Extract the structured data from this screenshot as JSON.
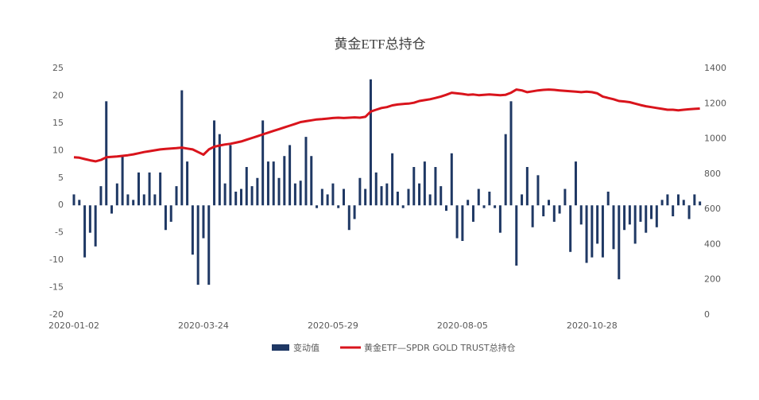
{
  "chart_data": {
    "type": "bar",
    "title": "黄金ETF总持仓",
    "categories": [
      "2020-01-02",
      null,
      null,
      null,
      null,
      null,
      null,
      null,
      null,
      null,
      null,
      null,
      null,
      null,
      null,
      null,
      null,
      null,
      null,
      null,
      null,
      null,
      null,
      null,
      "2020-03-24",
      null,
      null,
      null,
      null,
      null,
      null,
      null,
      null,
      null,
      null,
      null,
      null,
      null,
      null,
      null,
      null,
      null,
      null,
      null,
      null,
      null,
      null,
      null,
      "2020-05-29",
      null,
      null,
      null,
      null,
      null,
      null,
      null,
      null,
      null,
      null,
      null,
      null,
      null,
      null,
      null,
      null,
      null,
      null,
      null,
      null,
      null,
      null,
      null,
      "2020-08-05",
      null,
      null,
      null,
      null,
      null,
      null,
      null,
      null,
      null,
      null,
      null,
      null,
      null,
      null,
      null,
      null,
      null,
      null,
      null,
      null,
      null,
      null,
      null,
      "2020-10-28",
      null,
      null,
      null,
      null,
      null,
      null,
      null,
      null,
      null,
      null,
      null,
      null,
      null,
      null,
      null,
      null,
      null,
      null,
      null,
      null
    ],
    "series": [
      {
        "name": "变动值",
        "type": "bar",
        "color": "#1f3864",
        "values": [
          2,
          1,
          -9.5,
          -5,
          -7.5,
          3.5,
          19,
          -1.5,
          4,
          9,
          2,
          1,
          6,
          2,
          6,
          2,
          6,
          -4.5,
          -3,
          3.5,
          21,
          8,
          -9,
          -14.5,
          -6,
          -14.5,
          15.5,
          13,
          4,
          11,
          2.5,
          3,
          7,
          3.5,
          5,
          15.5,
          8,
          8,
          5,
          9,
          11,
          4,
          4.5,
          12.5,
          9,
          -0.5,
          3,
          2,
          4,
          -0.5,
          3,
          -4.5,
          -2.5,
          5,
          3,
          23,
          6,
          3.5,
          4,
          9.5,
          2.5,
          -0.5,
          3,
          7,
          4,
          8,
          2,
          7,
          3.5,
          -1,
          9.5,
          -6,
          -6.5,
          1,
          -3,
          3,
          -0.5,
          2.5,
          -0.5,
          -5,
          13,
          19,
          -11,
          2,
          7,
          -4,
          5.5,
          -2,
          1,
          -3,
          -1.5,
          3,
          -8.5,
          8,
          -3.5,
          -10.5,
          -9.5,
          -7,
          -9.5,
          2.5,
          -8,
          -13.5,
          -4.5,
          -3.5,
          -7,
          -3,
          -5,
          -2.5,
          -4,
          1,
          2,
          -2,
          2,
          1,
          -2.5,
          2,
          0.7
        ]
      },
      {
        "name": "黄金ETF—SPDR GOLD TRUST总持仓",
        "type": "line",
        "axis": "y2",
        "color": "#d9141c",
        "values": [
          895,
          893,
          885,
          878,
          872,
          880,
          895,
          898,
          900,
          903,
          907,
          912,
          918,
          925,
          930,
          935,
          940,
          943,
          945,
          947,
          950,
          945,
          940,
          925,
          910,
          940,
          955,
          962,
          968,
          972,
          978,
          985,
          995,
          1005,
          1015,
          1025,
          1035,
          1045,
          1055,
          1065,
          1075,
          1085,
          1095,
          1100,
          1105,
          1110,
          1112,
          1115,
          1118,
          1120,
          1118,
          1120,
          1122,
          1120,
          1125,
          1155,
          1165,
          1175,
          1180,
          1190,
          1195,
          1198,
          1200,
          1205,
          1215,
          1220,
          1225,
          1232,
          1240,
          1250,
          1262,
          1258,
          1255,
          1250,
          1252,
          1248,
          1250,
          1252,
          1250,
          1248,
          1250,
          1262,
          1280,
          1275,
          1265,
          1270,
          1275,
          1278,
          1280,
          1278,
          1275,
          1272,
          1270,
          1268,
          1265,
          1268,
          1265,
          1258,
          1240,
          1232,
          1225,
          1215,
          1212,
          1208,
          1200,
          1192,
          1185,
          1180,
          1175,
          1170,
          1165,
          1165,
          1162,
          1165,
          1168,
          1170,
          1172
        ]
      }
    ],
    "ylim": [
      -20,
      25
    ],
    "yticks": [
      -20,
      -15,
      -10,
      -5,
      0,
      5,
      10,
      15,
      20,
      25
    ],
    "y2lim": [
      0,
      1400
    ],
    "y2ticks": [
      0,
      200,
      400,
      600,
      800,
      1000,
      1200,
      1400
    ]
  }
}
